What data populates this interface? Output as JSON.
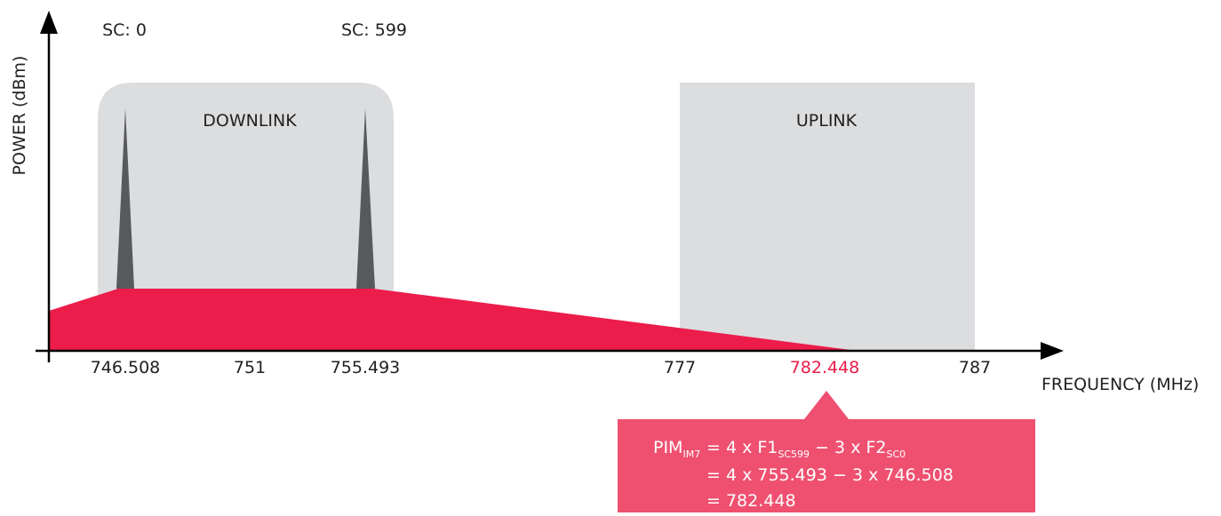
{
  "axes": {
    "y_label": "POWER (dBm)",
    "x_label": "FREQUENCY (MHz)"
  },
  "carriers": [
    {
      "label": "SC: 0"
    },
    {
      "label": "SC: 599"
    }
  ],
  "bands": [
    {
      "label": "DOWNLINK"
    },
    {
      "label": "UPLINK"
    }
  ],
  "x_ticks": [
    "746.508",
    "751",
    "755.493",
    "777",
    "782.448",
    "787"
  ],
  "formula": {
    "lhs": "PIM",
    "lhs_sub": "IM7",
    "line1": [
      "= 4 x F1",
      "SC599",
      " − 3 x F2",
      "SC0"
    ],
    "line2": "= 4 x 755.493 − 3 x 746.508",
    "line3": "= 782.448"
  }
}
